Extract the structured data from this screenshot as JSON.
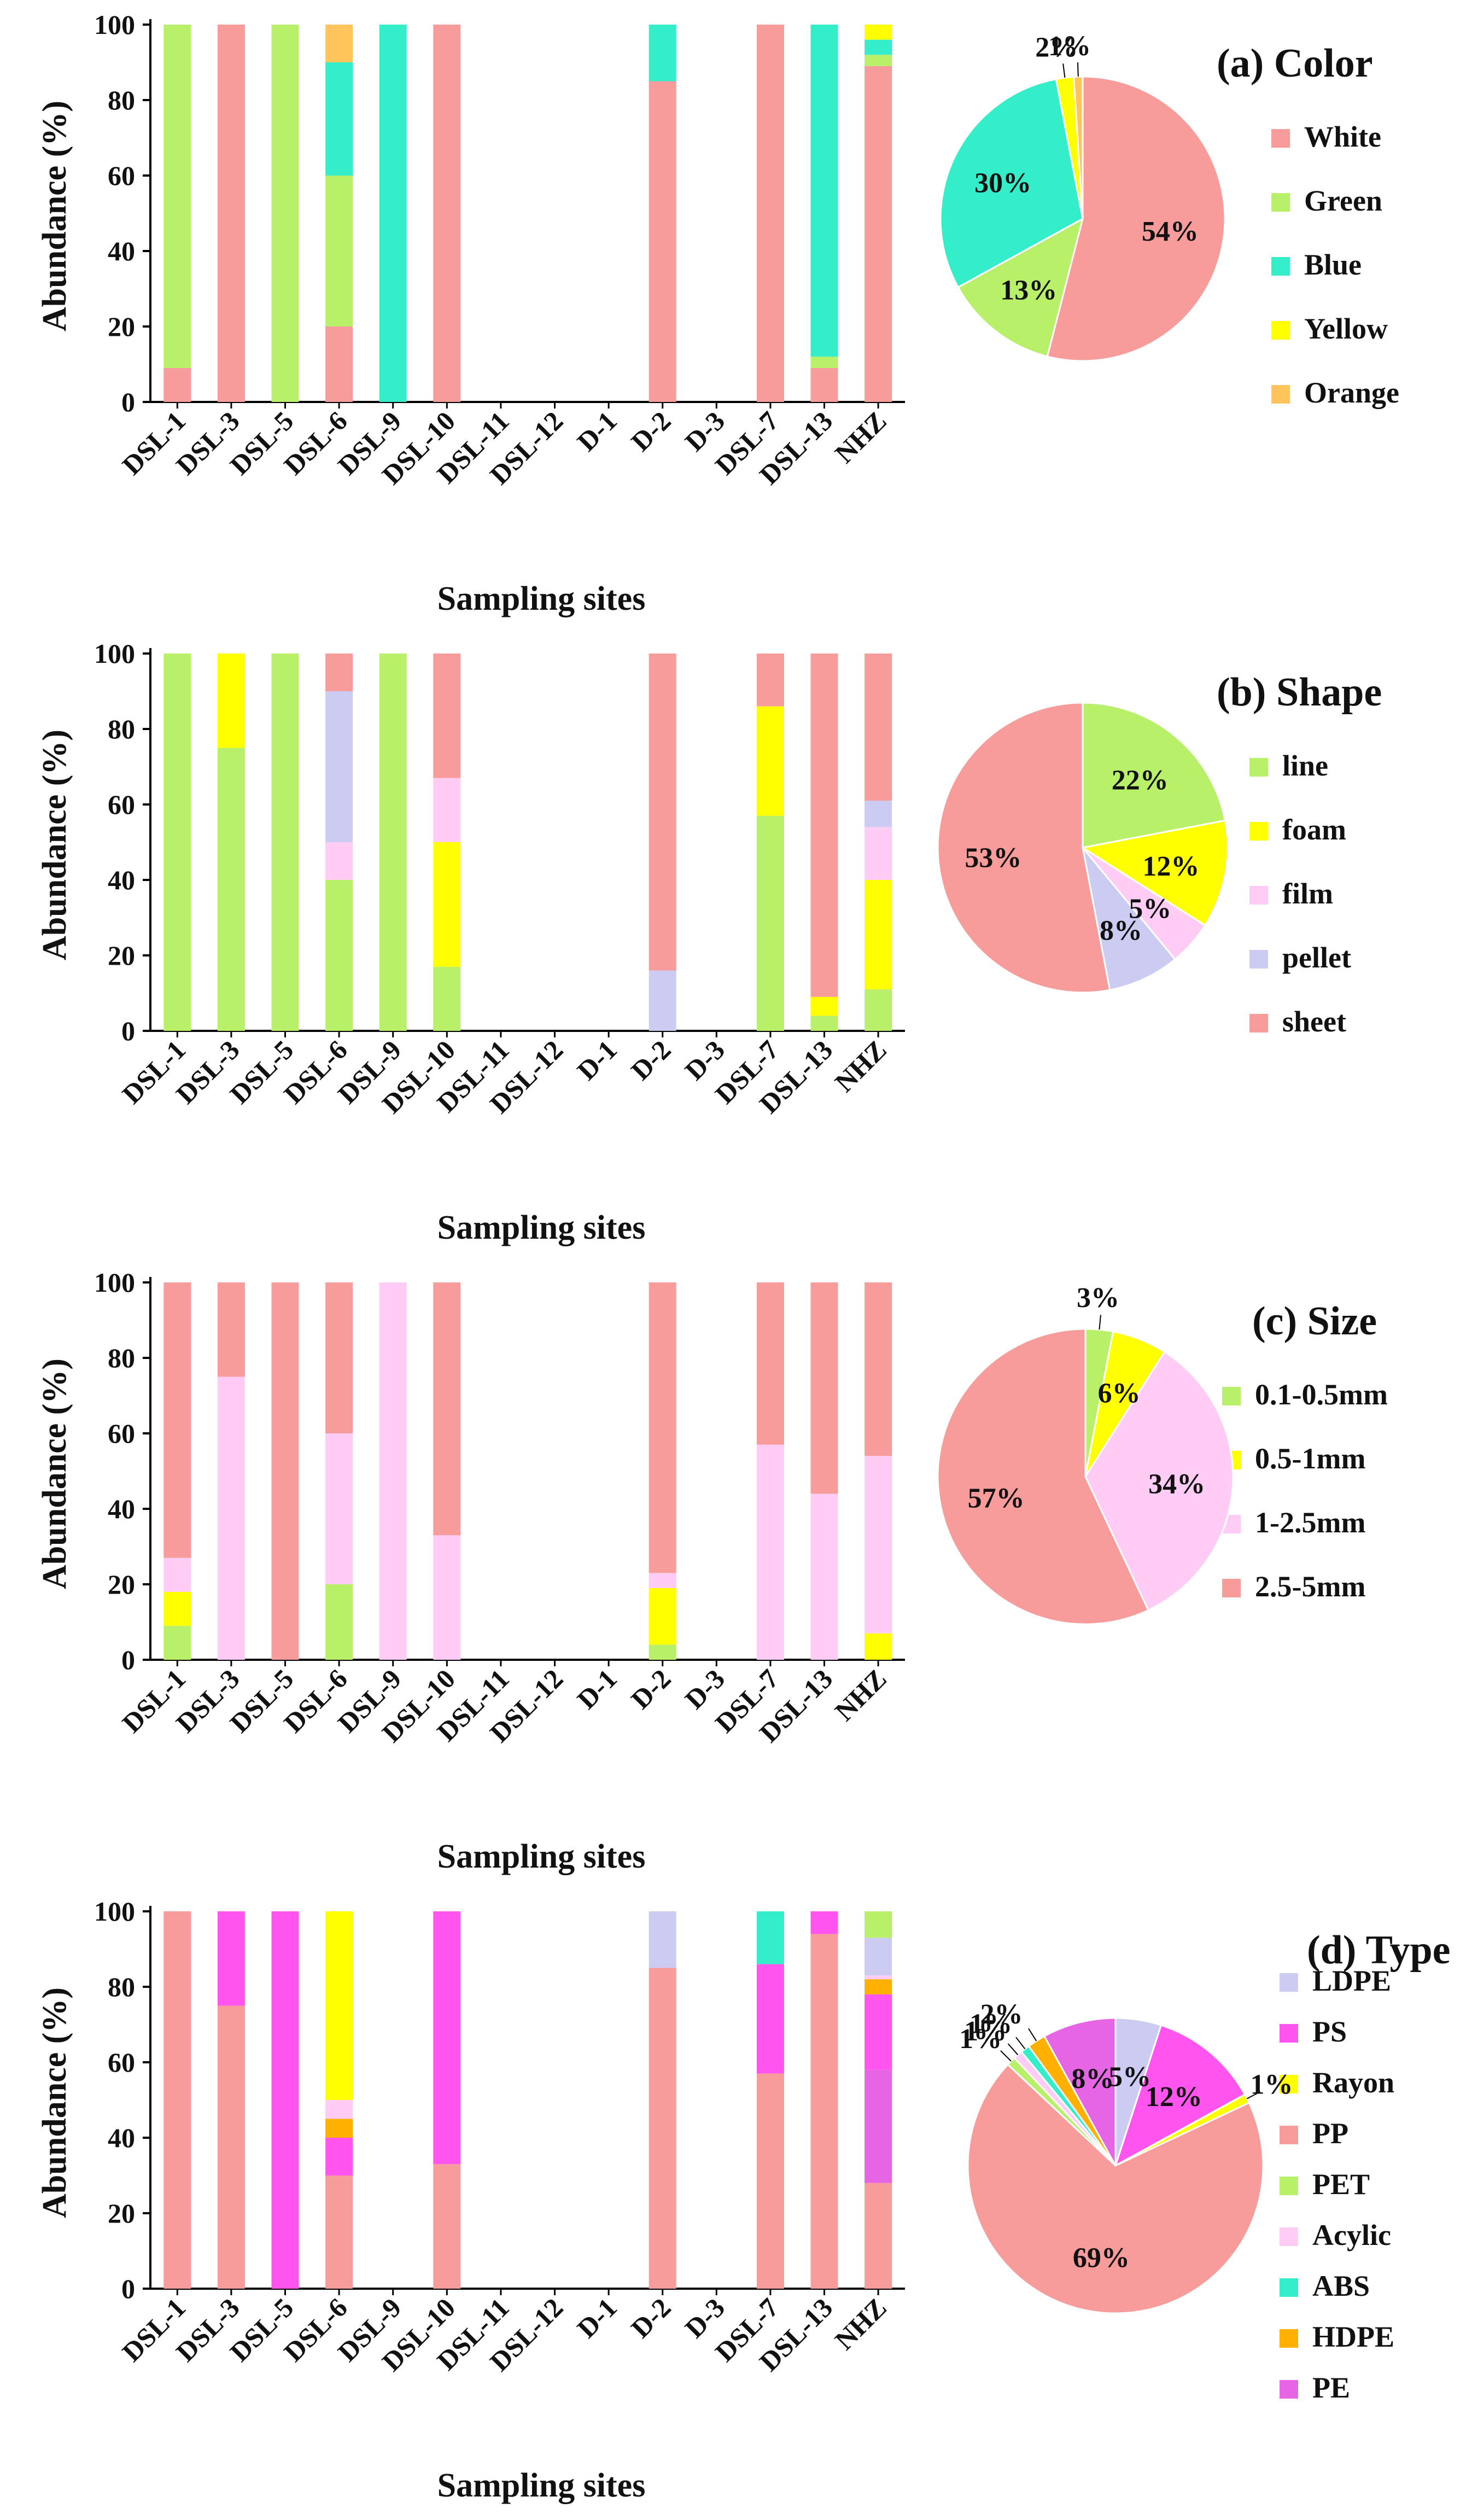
{
  "figure": {
    "sites": [
      "DSL-1",
      "DSL-3",
      "DSL-5",
      "DSL-6",
      "DSL-9",
      "DSL-10",
      "DSL-11",
      "DSL-12",
      "D-1",
      "D-2",
      "D-3",
      "DSL-7",
      "DSL-13",
      "NHZ"
    ],
    "y_ticks": [
      "0",
      "20",
      "40",
      "60",
      "80",
      "100"
    ]
  },
  "chart_data": [
    {
      "id": "a",
      "type": "bar",
      "stacked": true,
      "title": "(a) Color",
      "xlabel": "Sampling sites",
      "ylabel": "Abundance (%)",
      "ylim": [
        0,
        100
      ],
      "categories": [
        "DSL-1",
        "DSL-3",
        "DSL-5",
        "DSL-6",
        "DSL-9",
        "DSL-10",
        "DSL-11",
        "DSL-12",
        "D-1",
        "D-2",
        "D-3",
        "DSL-7",
        "DSL-13",
        "NHZ"
      ],
      "series": [
        {
          "name": "White",
          "color": "#F79B9B",
          "values": [
            9,
            100,
            0,
            20,
            0,
            100,
            0,
            0,
            0,
            85,
            0,
            100,
            9,
            89
          ]
        },
        {
          "name": "Green",
          "color": "#B8F06A",
          "values": [
            91,
            0,
            100,
            40,
            0,
            0,
            0,
            0,
            0,
            0,
            0,
            0,
            3,
            3
          ]
        },
        {
          "name": "Blue",
          "color": "#33EEC8",
          "values": [
            0,
            0,
            0,
            30,
            100,
            0,
            0,
            0,
            0,
            15,
            0,
            0,
            88,
            4
          ]
        },
        {
          "name": "Yellow",
          "color": "#FFFF00",
          "values": [
            0,
            0,
            0,
            0,
            0,
            0,
            0,
            0,
            0,
            0,
            0,
            0,
            0,
            4
          ]
        },
        {
          "name": "Orange",
          "color": "#FFC45C",
          "values": [
            0,
            0,
            0,
            10,
            0,
            0,
            0,
            0,
            0,
            0,
            0,
            0,
            0,
            0
          ]
        }
      ],
      "legend": [
        "White",
        "Green",
        "Blue",
        "Yellow",
        "Orange"
      ],
      "pie": {
        "slices": [
          {
            "name": "White",
            "value": 54,
            "label": "54%",
            "color": "#F79B9B"
          },
          {
            "name": "Green",
            "value": 13,
            "label": "13%",
            "color": "#B8F06A"
          },
          {
            "name": "Blue",
            "value": 30,
            "label": "30%",
            "color": "#33EEC8"
          },
          {
            "name": "Yellow",
            "value": 2,
            "label": "2%",
            "color": "#FFFF00"
          },
          {
            "name": "Orange",
            "value": 1,
            "label": "1%",
            "color": "#FFC45C"
          }
        ]
      }
    },
    {
      "id": "b",
      "type": "bar",
      "stacked": true,
      "title": "(b)  Shape",
      "xlabel": "Sampling sites",
      "ylabel": "Abundance (%)",
      "ylim": [
        0,
        100
      ],
      "categories": [
        "DSL-1",
        "DSL-3",
        "DSL-5",
        "DSL-6",
        "DSL-9",
        "DSL-10",
        "DSL-11",
        "DSL-12",
        "D-1",
        "D-2",
        "D-3",
        "DSL-7",
        "DSL-13",
        "NHZ"
      ],
      "series": [
        {
          "name": "line",
          "color": "#B8F06A",
          "values": [
            100,
            75,
            100,
            40,
            100,
            17,
            0,
            0,
            0,
            0,
            0,
            57,
            4,
            11
          ]
        },
        {
          "name": "foam",
          "color": "#FFFF00",
          "values": [
            0,
            25,
            0,
            0,
            0,
            33,
            0,
            0,
            0,
            0,
            0,
            29,
            5,
            29
          ]
        },
        {
          "name": "film",
          "color": "#FFCCF5",
          "values": [
            0,
            0,
            0,
            10,
            0,
            17,
            0,
            0,
            0,
            0,
            0,
            0,
            0,
            14
          ]
        },
        {
          "name": "pellet",
          "color": "#CCCCF2",
          "values": [
            0,
            0,
            0,
            40,
            0,
            0,
            0,
            0,
            0,
            16,
            0,
            0,
            0,
            7
          ]
        },
        {
          "name": "sheet",
          "color": "#F79B9B",
          "values": [
            0,
            0,
            0,
            10,
            0,
            33,
            0,
            0,
            0,
            84,
            0,
            14,
            91,
            39
          ]
        }
      ],
      "legend": [
        "line",
        "foam",
        "film",
        "pellet",
        "sheet"
      ],
      "pie": {
        "slices": [
          {
            "name": "line",
            "value": 22,
            "label": "22%",
            "color": "#B8F06A"
          },
          {
            "name": "foam",
            "value": 12,
            "label": "12%",
            "color": "#FFFF00"
          },
          {
            "name": "film",
            "value": 5,
            "label": "5%",
            "color": "#FFCCF5"
          },
          {
            "name": "pellet",
            "value": 8,
            "label": "8%",
            "color": "#CCCCF2"
          },
          {
            "name": "sheet",
            "value": 53,
            "label": "53%",
            "color": "#F79B9B"
          }
        ]
      }
    },
    {
      "id": "c",
      "type": "bar",
      "stacked": true,
      "title": "(c)  Size",
      "xlabel": "Sampling sites",
      "ylabel": "Abundance (%)",
      "ylim": [
        0,
        100
      ],
      "categories": [
        "DSL-1",
        "DSL-3",
        "DSL-5",
        "DSL-6",
        "DSL-9",
        "DSL-10",
        "DSL-11",
        "DSL-12",
        "D-1",
        "D-2",
        "D-3",
        "DSL-7",
        "DSL-13",
        "NHZ"
      ],
      "series": [
        {
          "name": "0.1-0.5mm",
          "color": "#B8F06A",
          "values": [
            9,
            0,
            0,
            20,
            0,
            0,
            0,
            0,
            0,
            4,
            0,
            0,
            0,
            0
          ]
        },
        {
          "name": "0.5-1mm",
          "color": "#FFFF00",
          "values": [
            9,
            0,
            0,
            0,
            0,
            0,
            0,
            0,
            0,
            15,
            0,
            0,
            0,
            7
          ]
        },
        {
          "name": "1-2.5mm",
          "color": "#FFCCF5",
          "values": [
            9,
            75,
            0,
            40,
            100,
            33,
            0,
            0,
            0,
            4,
            0,
            57,
            44,
            47
          ]
        },
        {
          "name": "2.5-5mm",
          "color": "#F79B9B",
          "values": [
            73,
            25,
            100,
            40,
            0,
            67,
            0,
            0,
            0,
            77,
            0,
            43,
            56,
            46
          ]
        }
      ],
      "legend": [
        "0.1-0.5mm",
        "0.5-1mm",
        "1-2.5mm",
        "2.5-5mm"
      ],
      "pie": {
        "slices": [
          {
            "name": "0.1-0.5mm",
            "value": 3,
            "label": "3%",
            "color": "#B8F06A"
          },
          {
            "name": "0.5-1mm",
            "value": 6,
            "label": "6%",
            "color": "#FFFF00"
          },
          {
            "name": "1-2.5mm",
            "value": 34,
            "label": "34%",
            "color": "#FFCCF5"
          },
          {
            "name": "2.5-5mm",
            "value": 57,
            "label": "57%",
            "color": "#F79B9B"
          }
        ]
      }
    },
    {
      "id": "d",
      "type": "bar",
      "stacked": true,
      "title": "(d)  Type",
      "xlabel": "Sampling sites",
      "ylabel": "Abundance (%)",
      "ylim": [
        0,
        100
      ],
      "categories": [
        "DSL-1",
        "DSL-3",
        "DSL-5",
        "DSL-6",
        "DSL-9",
        "DSL-10",
        "DSL-11",
        "DSL-12",
        "D-1",
        "D-2",
        "D-3",
        "DSL-7",
        "DSL-13",
        "NHZ"
      ],
      "series": [
        {
          "name": "PP",
          "color": "#F79B9B",
          "values": [
            100,
            75,
            0,
            30,
            0,
            33,
            0,
            0,
            0,
            85,
            0,
            57,
            94,
            28
          ]
        },
        {
          "name": "PE",
          "color": "#E565E5",
          "values": [
            0,
            0,
            0,
            0,
            0,
            0,
            0,
            0,
            0,
            0,
            0,
            0,
            0,
            30
          ]
        },
        {
          "name": "PS",
          "color": "#FF55EE",
          "values": [
            0,
            25,
            100,
            10,
            0,
            67,
            0,
            0,
            0,
            0,
            0,
            29,
            6,
            20
          ]
        },
        {
          "name": "HDPE",
          "color": "#FFB000",
          "values": [
            0,
            0,
            0,
            5,
            0,
            0,
            0,
            0,
            0,
            0,
            0,
            0,
            0,
            4
          ]
        },
        {
          "name": "Acylic",
          "color": "#FFCCF5",
          "values": [
            0,
            0,
            0,
            5,
            0,
            0,
            0,
            0,
            0,
            0,
            0,
            0,
            0,
            1
          ]
        },
        {
          "name": "Rayon",
          "color": "#FFFF00",
          "values": [
            0,
            0,
            0,
            50,
            0,
            0,
            0,
            0,
            0,
            0,
            0,
            0,
            0,
            0
          ]
        },
        {
          "name": "ABS",
          "color": "#33EEC8",
          "values": [
            0,
            0,
            0,
            0,
            0,
            0,
            0,
            0,
            0,
            0,
            0,
            14,
            0,
            0
          ]
        },
        {
          "name": "LDPE",
          "color": "#CCCCF2",
          "values": [
            0,
            0,
            0,
            0,
            0,
            0,
            0,
            0,
            0,
            15,
            0,
            0,
            0,
            10
          ]
        },
        {
          "name": "PET",
          "color": "#B8F06A",
          "values": [
            0,
            0,
            0,
            0,
            0,
            0,
            0,
            0,
            0,
            0,
            0,
            0,
            0,
            7
          ]
        }
      ],
      "legend": [
        "LDPE",
        "PS",
        "Rayon",
        "PP",
        "PET",
        "Acylic",
        "ABS",
        "HDPE",
        "PE"
      ],
      "pie": {
        "slices": [
          {
            "name": "LDPE",
            "value": 5,
            "label": "5%",
            "color": "#CCCCF2"
          },
          {
            "name": "PS",
            "value": 12,
            "label": "12%",
            "color": "#FF55EE"
          },
          {
            "name": "Rayon",
            "value": 1,
            "label": "1%",
            "color": "#FFFF00"
          },
          {
            "name": "PP",
            "value": 69,
            "label": "69%",
            "color": "#F79B9B"
          },
          {
            "name": "PET",
            "value": 1,
            "label": "1%",
            "color": "#B8F06A"
          },
          {
            "name": "Acylic",
            "value": 1,
            "label": "1%",
            "color": "#FFCCF5"
          },
          {
            "name": "ABS",
            "value": 1,
            "label": "1%",
            "color": "#33EEC8"
          },
          {
            "name": "HDPE",
            "value": 2,
            "label": "2%",
            "color": "#FFB000"
          },
          {
            "name": "PE",
            "value": 8,
            "label": "8%",
            "color": "#E565E5"
          }
        ]
      }
    }
  ]
}
